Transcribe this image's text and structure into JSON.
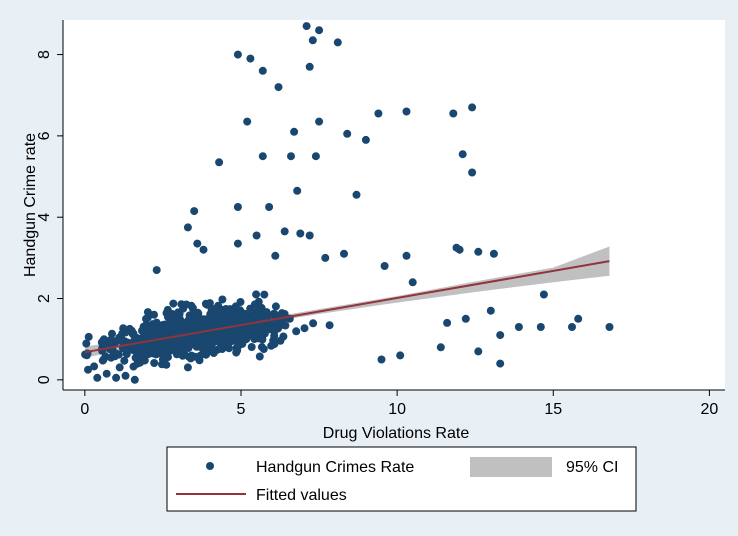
{
  "chart_data": {
    "type": "scatter",
    "xlabel": "Drug Violations Rate",
    "ylabel": "Handgun Crime rate",
    "xlim": [
      -0.7,
      20.5
    ],
    "ylim": [
      -0.25,
      8.85
    ],
    "xticks": [
      0,
      5,
      10,
      15,
      20
    ],
    "yticks": [
      0,
      2,
      4,
      6,
      8
    ],
    "grid": false,
    "legend_position": "bottom",
    "colors": {
      "scatter": "#1a476f",
      "fit_line": "#90353b",
      "ci_band": "#c0c0c0",
      "plot_bg": "#ffffff",
      "page_bg": "#e9f0f5"
    },
    "legend": [
      {
        "label": "Handgun Crimes Rate",
        "kind": "marker"
      },
      {
        "label": "95% CI",
        "kind": "band"
      },
      {
        "label": "Fitted values",
        "kind": "line"
      }
    ],
    "series": [
      {
        "name": "Handgun Crimes Rate",
        "kind": "scatter",
        "points": [
          [
            7.1,
            8.7
          ],
          [
            7.5,
            8.6
          ],
          [
            7.3,
            8.35
          ],
          [
            8.1,
            8.3
          ],
          [
            4.9,
            8.0
          ],
          [
            5.3,
            7.9
          ],
          [
            7.2,
            7.7
          ],
          [
            5.7,
            7.6
          ],
          [
            6.2,
            7.2
          ],
          [
            9.4,
            6.55
          ],
          [
            10.3,
            6.6
          ],
          [
            11.8,
            6.55
          ],
          [
            12.4,
            6.7
          ],
          [
            5.2,
            6.35
          ],
          [
            7.5,
            6.35
          ],
          [
            6.7,
            6.1
          ],
          [
            8.4,
            6.05
          ],
          [
            9.0,
            5.9
          ],
          [
            12.1,
            5.55
          ],
          [
            12.4,
            5.1
          ],
          [
            5.7,
            5.5
          ],
          [
            6.6,
            5.5
          ],
          [
            7.4,
            5.5
          ],
          [
            4.3,
            5.35
          ],
          [
            6.8,
            4.65
          ],
          [
            8.7,
            4.55
          ],
          [
            4.9,
            4.25
          ],
          [
            5.9,
            4.25
          ],
          [
            3.5,
            4.15
          ],
          [
            3.3,
            3.75
          ],
          [
            6.4,
            3.65
          ],
          [
            6.9,
            3.6
          ],
          [
            7.2,
            3.55
          ],
          [
            5.5,
            3.55
          ],
          [
            4.9,
            3.35
          ],
          [
            3.6,
            3.35
          ],
          [
            3.8,
            3.2
          ],
          [
            6.1,
            3.05
          ],
          [
            7.7,
            3.0
          ],
          [
            8.3,
            3.1
          ],
          [
            10.3,
            3.05
          ],
          [
            11.9,
            3.25
          ],
          [
            12.0,
            3.2
          ],
          [
            12.6,
            3.15
          ],
          [
            13.1,
            3.1
          ],
          [
            2.3,
            2.7
          ],
          [
            9.6,
            2.8
          ],
          [
            10.5,
            2.4
          ],
          [
            14.7,
            2.1
          ],
          [
            0.6,
            0.5
          ],
          [
            15.8,
            1.5
          ],
          [
            13.9,
            1.3
          ],
          [
            14.6,
            1.3
          ],
          [
            15.6,
            1.3
          ],
          [
            16.8,
            1.3
          ],
          [
            13.3,
            1.1
          ],
          [
            12.6,
            0.7
          ],
          [
            13.3,
            0.4
          ],
          [
            9.5,
            0.5
          ],
          [
            10.1,
            0.6
          ],
          [
            11.4,
            0.8
          ],
          [
            11.6,
            1.4
          ],
          [
            12.2,
            1.5
          ],
          [
            13.0,
            1.7
          ],
          [
            0.1,
            0.25
          ],
          [
            0.4,
            0.05
          ],
          [
            0.7,
            0.15
          ],
          [
            1.0,
            0.05
          ],
          [
            1.3,
            0.1
          ],
          [
            1.6,
            0.0
          ]
        ]
      },
      {
        "name": "Fitted values",
        "kind": "line",
        "x": [
          0,
          16.8
        ],
        "y": [
          0.68,
          2.92
        ]
      },
      {
        "name": "95% CI",
        "kind": "band",
        "x": [
          0,
          3,
          5,
          7.5,
          10,
          12.5,
          15,
          16.8
        ],
        "lower": [
          0.54,
          1.02,
          1.31,
          1.62,
          1.9,
          2.16,
          2.4,
          2.56
        ],
        "upper": [
          0.82,
          1.14,
          1.41,
          1.74,
          2.06,
          2.42,
          2.76,
          3.28
        ]
      }
    ]
  }
}
